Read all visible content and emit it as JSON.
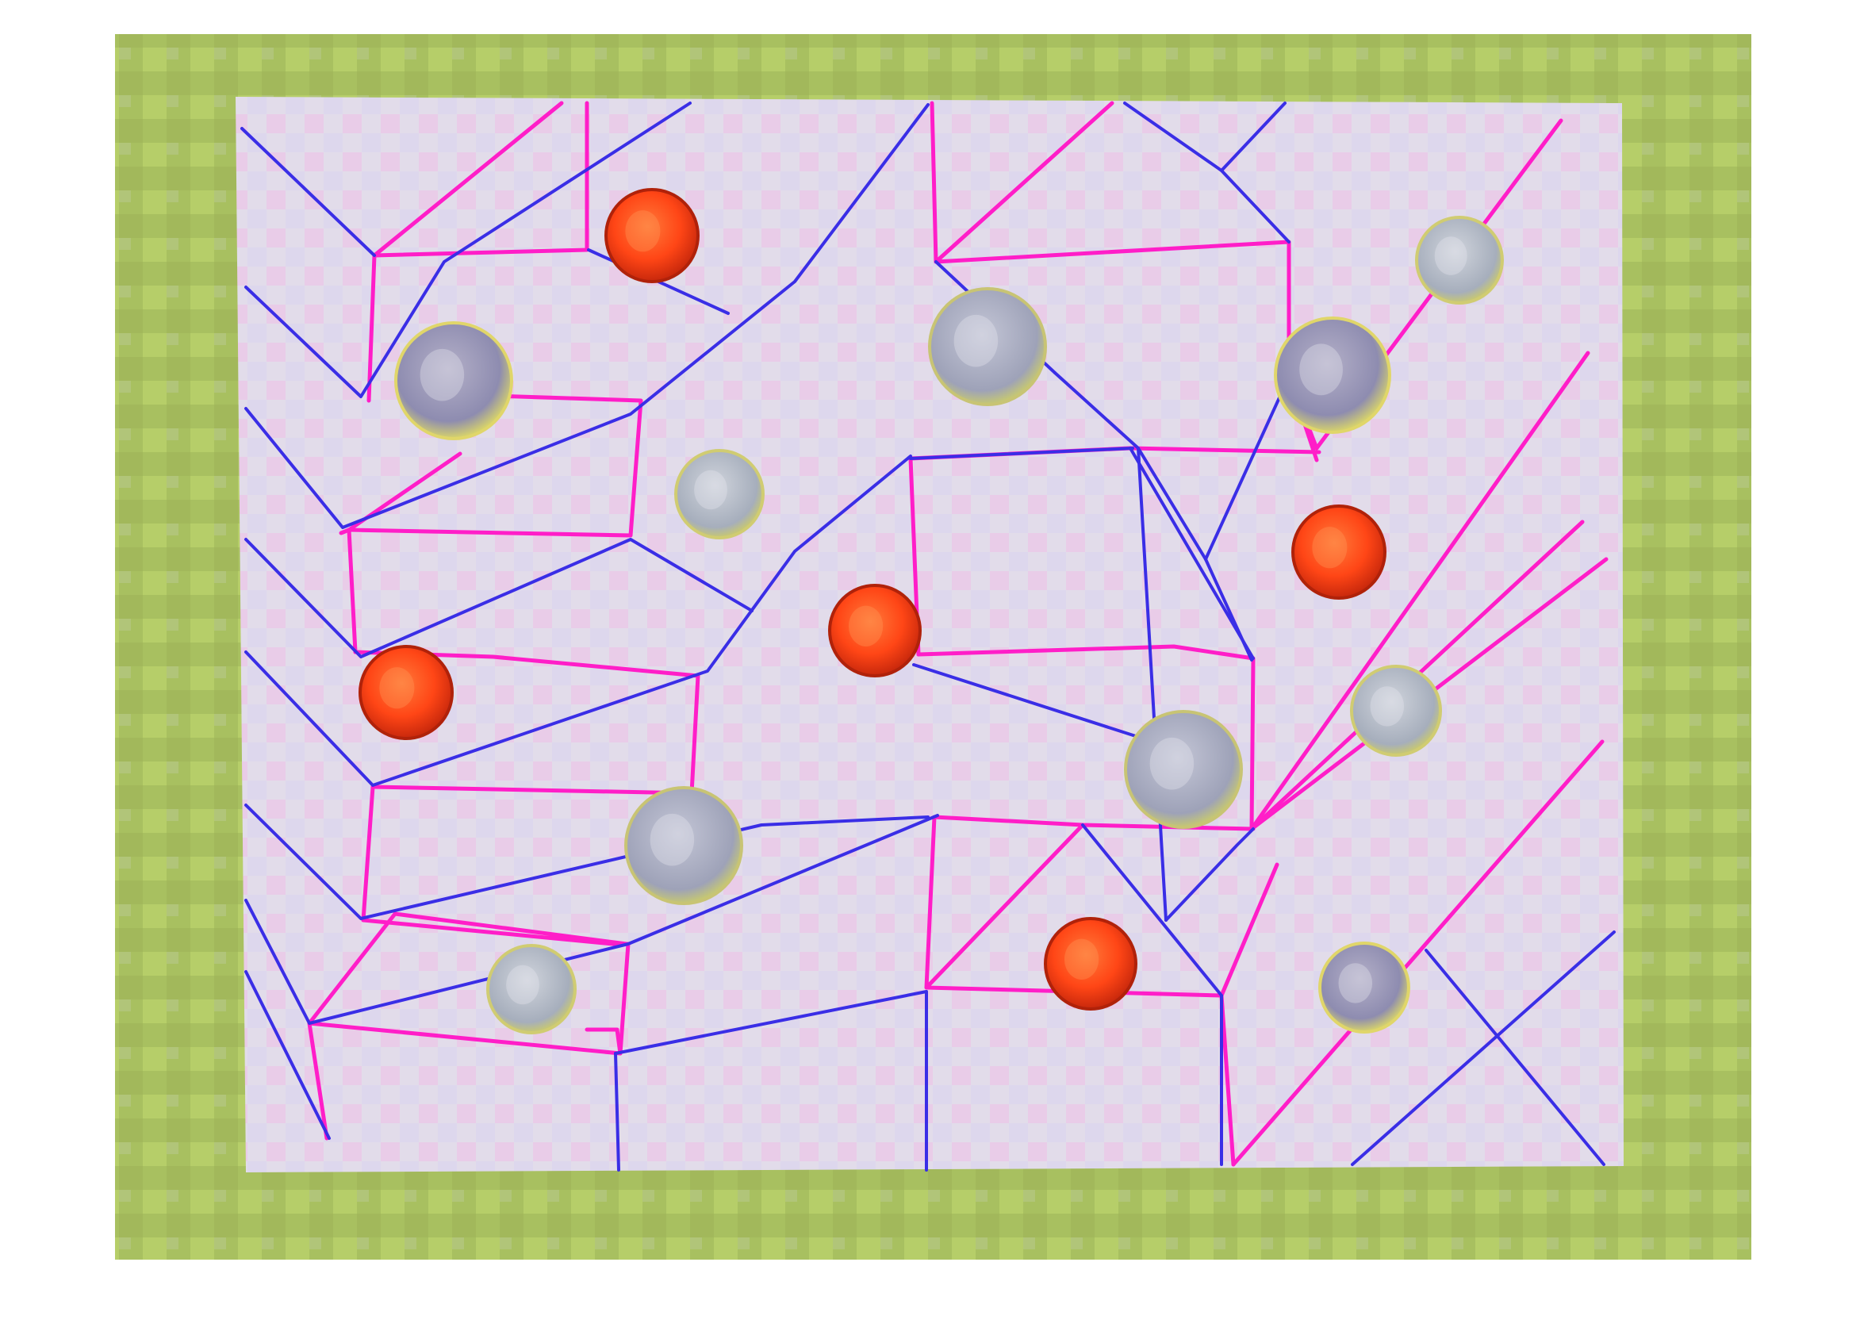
{
  "image": {
    "subject": "",
    "colors": {
      "page_background": "#ffffff",
      "backdrop_primary": "#a8c060",
      "backdrop_secondary": "#c0d870",
      "paper": "#e2dcea",
      "paper_pink": "#ebc6e6",
      "magenta_line": "#ff1ec8",
      "blue_line": "#3a2ee6",
      "penny": "#ff4616",
      "penny_dark": "#c8280c",
      "nickel": "#9a9bbe",
      "nickel_rim": "#d8d46a",
      "dime": "#b0b8c4",
      "quarter": "#a8acc2"
    },
    "coins": [
      {
        "kind": "penny"
      },
      {
        "kind": "nickel"
      },
      {
        "kind": "dime"
      },
      {
        "kind": "quarter"
      },
      {
        "kind": "nickel"
      },
      {
        "kind": "dime"
      },
      {
        "kind": "penny"
      },
      {
        "kind": "penny"
      },
      {
        "kind": "penny"
      },
      {
        "kind": "quarter"
      },
      {
        "kind": "dime"
      },
      {
        "kind": "quarter"
      },
      {
        "kind": "penny"
      },
      {
        "kind": "dime"
      },
      {
        "kind": "nickel"
      },
      {
        "kind": "dime"
      }
    ]
  }
}
